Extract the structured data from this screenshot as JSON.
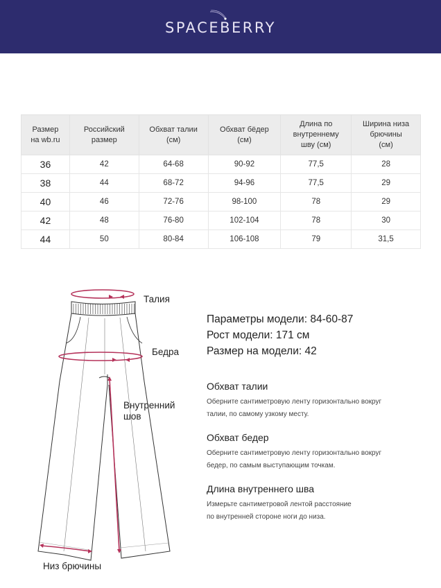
{
  "brand": {
    "name": "SPACEBERRY",
    "bg_color": "#2d2c6e"
  },
  "table": {
    "headers": [
      [
        "Размер",
        "на wb.ru"
      ],
      [
        "Российский",
        "размер"
      ],
      [
        "Обхват талии",
        "(см)"
      ],
      [
        "Обхват бёдер",
        "(см)"
      ],
      [
        "Длина по",
        "внутреннему",
        "шву (см)"
      ],
      [
        "Ширина низа",
        "брючины",
        "(см)"
      ]
    ],
    "rows": [
      [
        "36",
        "42",
        "64-68",
        "90-92",
        "77,5",
        "28"
      ],
      [
        "38",
        "44",
        "68-72",
        "94-96",
        "77,5",
        "29"
      ],
      [
        "40",
        "46",
        "72-76",
        "98-100",
        "78",
        "29"
      ],
      [
        "42",
        "48",
        "76-80",
        "102-104",
        "78",
        "30"
      ],
      [
        "44",
        "50",
        "80-84",
        "106-108",
        "79",
        "31,5"
      ]
    ]
  },
  "diagram": {
    "accent_color": "#b5325a",
    "labels": {
      "waist": "Талия",
      "hips": "Бедра",
      "inseam_1": "Внутренний",
      "inseam_2": "шов",
      "hem": "Низ брючины"
    }
  },
  "model": {
    "params": "Параметры модели:",
    "params_value": "84-60-87",
    "height": "Рост модели:",
    "height_value": "171 см",
    "size": "Размер на модели:",
    "size_value": "42"
  },
  "sections": [
    {
      "title": "Обхват талии",
      "lines": [
        "Оберните сантиметровую ленту горизонтально вокруг",
        "талии, по самому узкому месту."
      ]
    },
    {
      "title": "Обхват бедер",
      "lines": [
        "Оберните сантиметровую ленту горизонтально вокруг",
        "бедер, по самым выступающим точкам."
      ]
    },
    {
      "title": "Длина внутреннего шва",
      "lines": [
        "Измерьте сантиметровой лентой расстояние",
        "по внутренней стороне ноги до низа."
      ]
    }
  ]
}
